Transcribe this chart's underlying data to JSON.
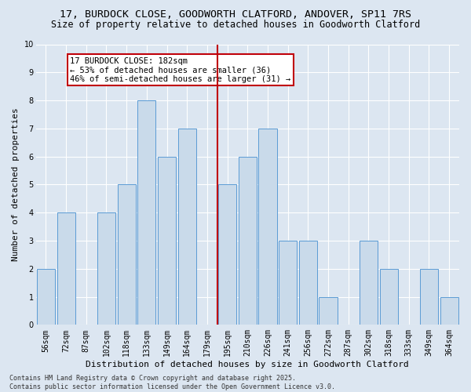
{
  "title_line1": "17, BURDOCK CLOSE, GOODWORTH CLATFORD, ANDOVER, SP11 7RS",
  "title_line2": "Size of property relative to detached houses in Goodworth Clatford",
  "xlabel": "Distribution of detached houses by size in Goodworth Clatford",
  "ylabel": "Number of detached properties",
  "categories": [
    "56sqm",
    "72sqm",
    "87sqm",
    "102sqm",
    "118sqm",
    "133sqm",
    "149sqm",
    "164sqm",
    "179sqm",
    "195sqm",
    "210sqm",
    "226sqm",
    "241sqm",
    "256sqm",
    "272sqm",
    "287sqm",
    "302sqm",
    "318sqm",
    "333sqm",
    "349sqm",
    "364sqm"
  ],
  "values": [
    2,
    4,
    0,
    4,
    5,
    8,
    6,
    7,
    0,
    5,
    6,
    7,
    3,
    3,
    1,
    0,
    3,
    2,
    0,
    2,
    1
  ],
  "bar_color": "#c9daea",
  "bar_edge_color": "#5b9bd5",
  "vline_x_index": 8,
  "vline_color": "#c0000a",
  "annotation_text": "17 BURDOCK CLOSE: 182sqm\n← 53% of detached houses are smaller (36)\n46% of semi-detached houses are larger (31) →",
  "annotation_box_color": "#c0000a",
  "bg_color": "#dce6f1",
  "plot_bg_color": "#dce6f1",
  "ylim": [
    0,
    10
  ],
  "yticks": [
    0,
    1,
    2,
    3,
    4,
    5,
    6,
    7,
    8,
    9,
    10
  ],
  "grid_color": "#ffffff",
  "footer": "Contains HM Land Registry data © Crown copyright and database right 2025.\nContains public sector information licensed under the Open Government Licence v3.0.",
  "title_fontsize": 9.5,
  "subtitle_fontsize": 8.5,
  "axis_label_fontsize": 8,
  "tick_fontsize": 7,
  "annotation_fontsize": 7.5,
  "footer_fontsize": 6
}
